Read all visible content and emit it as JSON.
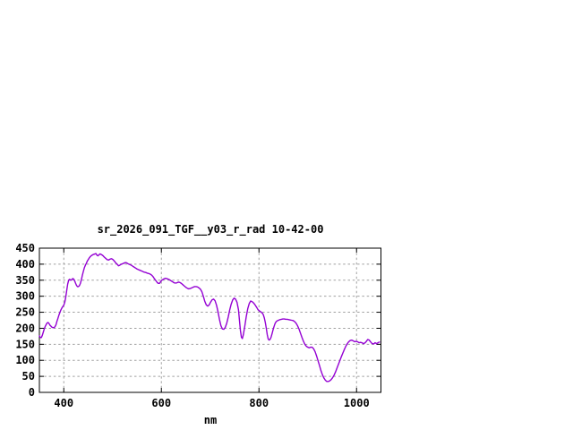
{
  "page": {
    "background": "#ffffff"
  },
  "chart_data": {
    "type": "line",
    "title": "sr_2026_091_TGF__y03_r_rad 10-42-00",
    "xlabel": "nm",
    "ylabel": "",
    "xlim": [
      350,
      1050
    ],
    "ylim": [
      0,
      450
    ],
    "xticks": [
      400,
      600,
      800,
      1000
    ],
    "yticks": [
      0,
      50,
      100,
      150,
      200,
      250,
      300,
      350,
      400,
      450
    ],
    "grid": true,
    "legend_position": "none",
    "line_color": "#9400d3",
    "grid_color": "#a0a0a0",
    "axis_color": "#000000",
    "text_color": "#000000",
    "series": [
      {
        "name": "sr_2026_091_TGF__y03_r_rad",
        "points": [
          [
            350,
            176
          ],
          [
            352,
            171
          ],
          [
            354,
            171
          ],
          [
            356,
            178
          ],
          [
            358,
            188
          ],
          [
            360,
            198
          ],
          [
            362,
            206
          ],
          [
            364,
            212
          ],
          [
            366,
            217
          ],
          [
            368,
            218
          ],
          [
            370,
            214
          ],
          [
            372,
            209
          ],
          [
            374,
            206
          ],
          [
            376,
            203
          ],
          [
            378,
            202
          ],
          [
            380,
            202
          ],
          [
            382,
            205
          ],
          [
            384,
            211
          ],
          [
            386,
            222
          ],
          [
            388,
            231
          ],
          [
            390,
            241
          ],
          [
            392,
            249
          ],
          [
            394,
            257
          ],
          [
            396,
            263
          ],
          [
            398,
            268
          ],
          [
            400,
            272
          ],
          [
            402,
            281
          ],
          [
            404,
            297
          ],
          [
            406,
            318
          ],
          [
            408,
            338
          ],
          [
            410,
            350
          ],
          [
            412,
            353
          ],
          [
            414,
            350
          ],
          [
            416,
            351
          ],
          [
            418,
            355
          ],
          [
            420,
            354
          ],
          [
            422,
            349
          ],
          [
            424,
            341
          ],
          [
            426,
            334
          ],
          [
            428,
            330
          ],
          [
            430,
            330
          ],
          [
            432,
            333
          ],
          [
            434,
            340
          ],
          [
            436,
            351
          ],
          [
            438,
            365
          ],
          [
            440,
            377
          ],
          [
            442,
            388
          ],
          [
            444,
            396
          ],
          [
            446,
            402
          ],
          [
            448,
            409
          ],
          [
            450,
            414
          ],
          [
            452,
            419
          ],
          [
            454,
            423
          ],
          [
            456,
            426
          ],
          [
            458,
            428
          ],
          [
            460,
            430
          ],
          [
            462,
            431
          ],
          [
            464,
            432
          ],
          [
            466,
            433
          ],
          [
            468,
            428
          ],
          [
            470,
            426
          ],
          [
            472,
            429
          ],
          [
            474,
            432
          ],
          [
            476,
            431
          ],
          [
            478,
            429
          ],
          [
            480,
            427
          ],
          [
            483,
            422
          ],
          [
            486,
            418
          ],
          [
            489,
            414
          ],
          [
            492,
            413
          ],
          [
            495,
            416
          ],
          [
            498,
            417
          ],
          [
            501,
            414
          ],
          [
            504,
            409
          ],
          [
            507,
            403
          ],
          [
            510,
            399
          ],
          [
            512,
            395
          ],
          [
            514,
            396
          ],
          [
            516,
            398
          ],
          [
            518,
            400
          ],
          [
            520,
            401
          ],
          [
            523,
            403
          ],
          [
            526,
            405
          ],
          [
            529,
            404
          ],
          [
            532,
            401
          ],
          [
            535,
            399
          ],
          [
            538,
            397
          ],
          [
            541,
            394
          ],
          [
            544,
            391
          ],
          [
            547,
            388
          ],
          [
            550,
            385
          ],
          [
            553,
            383
          ],
          [
            556,
            381
          ],
          [
            559,
            379
          ],
          [
            562,
            377
          ],
          [
            565,
            375
          ],
          [
            568,
            374
          ],
          [
            571,
            372
          ],
          [
            574,
            371
          ],
          [
            577,
            369
          ],
          [
            580,
            366
          ],
          [
            583,
            361
          ],
          [
            586,
            354
          ],
          [
            589,
            348
          ],
          [
            592,
            342
          ],
          [
            594,
            340
          ],
          [
            596,
            340
          ],
          [
            598,
            344
          ],
          [
            600,
            349
          ],
          [
            602,
            351
          ],
          [
            605,
            354
          ],
          [
            608,
            356
          ],
          [
            611,
            355
          ],
          [
            614,
            353
          ],
          [
            617,
            351
          ],
          [
            620,
            348
          ],
          [
            623,
            345
          ],
          [
            626,
            342
          ],
          [
            629,
            341
          ],
          [
            632,
            342
          ],
          [
            635,
            344
          ],
          [
            638,
            343
          ],
          [
            641,
            340
          ],
          [
            644,
            336
          ],
          [
            647,
            332
          ],
          [
            650,
            328
          ],
          [
            653,
            325
          ],
          [
            656,
            323
          ],
          [
            659,
            324
          ],
          [
            662,
            326
          ],
          [
            665,
            328
          ],
          [
            668,
            330
          ],
          [
            671,
            330
          ],
          [
            674,
            329
          ],
          [
            677,
            326
          ],
          [
            680,
            322
          ],
          [
            683,
            314
          ],
          [
            686,
            300
          ],
          [
            689,
            284
          ],
          [
            692,
            273
          ],
          [
            695,
            269
          ],
          [
            698,
            273
          ],
          [
            701,
            282
          ],
          [
            704,
            289
          ],
          [
            707,
            291
          ],
          [
            710,
            286
          ],
          [
            713,
            272
          ],
          [
            716,
            252
          ],
          [
            719,
            228
          ],
          [
            722,
            208
          ],
          [
            725,
            198
          ],
          [
            728,
            197
          ],
          [
            731,
            203
          ],
          [
            734,
            216
          ],
          [
            737,
            235
          ],
          [
            740,
            257
          ],
          [
            743,
            275
          ],
          [
            746,
            288
          ],
          [
            749,
            294
          ],
          [
            752,
            291
          ],
          [
            755,
            281
          ],
          [
            758,
            258
          ],
          [
            760,
            225
          ],
          [
            762,
            193
          ],
          [
            764,
            172
          ],
          [
            766,
            168
          ],
          [
            768,
            180
          ],
          [
            771,
            207
          ],
          [
            774,
            237
          ],
          [
            777,
            261
          ],
          [
            780,
            277
          ],
          [
            783,
            285
          ],
          [
            786,
            283
          ],
          [
            789,
            279
          ],
          [
            792,
            273
          ],
          [
            795,
            266
          ],
          [
            798,
            258
          ],
          [
            801,
            254
          ],
          [
            804,
            251
          ],
          [
            807,
            247
          ],
          [
            809,
            242
          ],
          [
            811,
            232
          ],
          [
            813,
            218
          ],
          [
            815,
            200
          ],
          [
            817,
            180
          ],
          [
            819,
            166
          ],
          [
            821,
            163
          ],
          [
            823,
            166
          ],
          [
            825,
            173
          ],
          [
            827,
            184
          ],
          [
            829,
            196
          ],
          [
            831,
            206
          ],
          [
            833,
            215
          ],
          [
            835,
            220
          ],
          [
            837,
            223
          ],
          [
            840,
            225
          ],
          [
            843,
            227
          ],
          [
            846,
            228
          ],
          [
            849,
            229
          ],
          [
            852,
            229
          ],
          [
            855,
            228
          ],
          [
            858,
            228
          ],
          [
            861,
            227
          ],
          [
            864,
            226
          ],
          [
            867,
            225
          ],
          [
            870,
            224
          ],
          [
            873,
            221
          ],
          [
            876,
            216
          ],
          [
            879,
            208
          ],
          [
            882,
            198
          ],
          [
            885,
            185
          ],
          [
            888,
            172
          ],
          [
            891,
            160
          ],
          [
            894,
            150
          ],
          [
            897,
            144
          ],
          [
            900,
            141
          ],
          [
            903,
            139
          ],
          [
            906,
            141
          ],
          [
            909,
            141
          ],
          [
            912,
            136
          ],
          [
            915,
            127
          ],
          [
            918,
            114
          ],
          [
            921,
            99
          ],
          [
            924,
            84
          ],
          [
            927,
            68
          ],
          [
            930,
            55
          ],
          [
            933,
            45
          ],
          [
            936,
            38
          ],
          [
            939,
            34
          ],
          [
            942,
            34
          ],
          [
            945,
            36
          ],
          [
            948,
            40
          ],
          [
            951,
            46
          ],
          [
            954,
            54
          ],
          [
            957,
            64
          ],
          [
            960,
            76
          ],
          [
            963,
            88
          ],
          [
            966,
            100
          ],
          [
            969,
            112
          ],
          [
            972,
            123
          ],
          [
            975,
            134
          ],
          [
            978,
            144
          ],
          [
            981,
            152
          ],
          [
            984,
            158
          ],
          [
            987,
            162
          ],
          [
            990,
            163
          ],
          [
            993,
            161
          ],
          [
            996,
            158
          ],
          [
            999,
            159
          ],
          [
            1002,
            158
          ],
          [
            1005,
            155
          ],
          [
            1008,
            156
          ],
          [
            1011,
            155
          ],
          [
            1014,
            152
          ],
          [
            1017,
            154
          ],
          [
            1020,
            159
          ],
          [
            1023,
            165
          ],
          [
            1026,
            163
          ],
          [
            1029,
            157
          ],
          [
            1032,
            152
          ],
          [
            1035,
            151
          ],
          [
            1038,
            155
          ],
          [
            1041,
            152
          ],
          [
            1044,
            155
          ],
          [
            1047,
            157
          ]
        ]
      }
    ]
  }
}
